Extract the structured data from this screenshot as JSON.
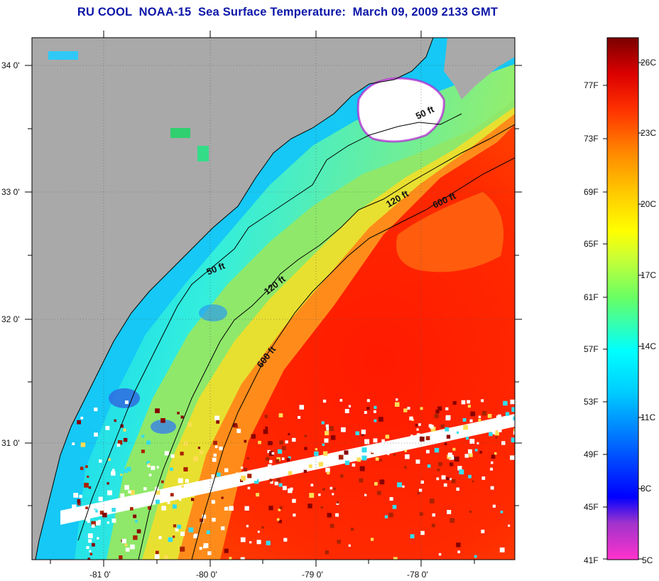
{
  "title": "RU COOL  NOAA-15  Sea Surface Temperature:  March 09, 2009 2133 GMT",
  "map": {
    "lat_labels": [
      "34 0'",
      "33 0'",
      "32 0'",
      "31 0'"
    ],
    "lon_labels": [
      "-81 0'",
      "-80 0'",
      "-79 0'",
      "-78 0'"
    ],
    "contours": [
      {
        "label": "50 ft"
      },
      {
        "label": "50 ft"
      },
      {
        "label": "120 ft"
      },
      {
        "label": "120 ft"
      },
      {
        "label": "600 ft"
      },
      {
        "label": "600 ft"
      }
    ],
    "colors": {
      "land": "#a9a9a9",
      "cloud": "#ffffff",
      "contour": "#000000"
    }
  },
  "colorbar": {
    "fahrenheit": [
      "77F",
      "73F",
      "69F",
      "65F",
      "61F",
      "57F",
      "53F",
      "49F",
      "45F",
      "41F"
    ],
    "celsius": [
      "26C",
      "23C",
      "20C",
      "17C",
      "14C",
      "11C",
      "8C",
      "5C"
    ],
    "range_c": [
      5,
      27
    ],
    "stops": [
      "#ff33cc",
      "#9933cc",
      "#0000ff",
      "#0066ff",
      "#00ccff",
      "#00ffff",
      "#66ff66",
      "#ccff33",
      "#ffff00",
      "#ffcc00",
      "#ff8800",
      "#ff3300",
      "#ee0000",
      "#bb0000",
      "#7a0000"
    ]
  }
}
